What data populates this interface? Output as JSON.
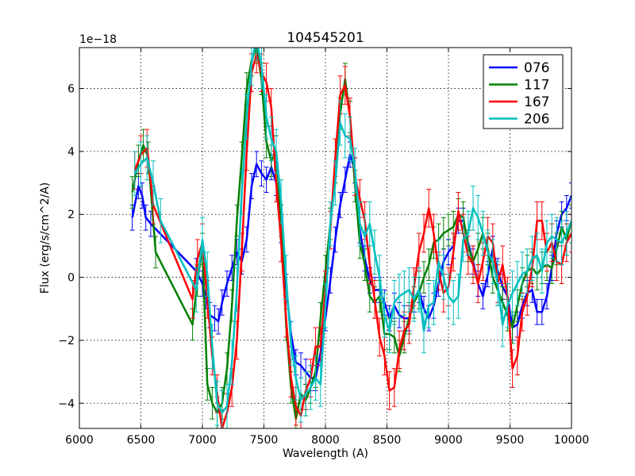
{
  "chart_data": {
    "type": "line",
    "title": "104545201",
    "xlabel": "Wavelength (A)",
    "ylabel": "Flux (erg/s/cm^2/A)",
    "y_offset_label": "1e−18",
    "xlim": [
      6000,
      10000
    ],
    "ylim": [
      -4.8,
      7.3
    ],
    "xticks": [
      6000,
      6500,
      7000,
      7500,
      8000,
      8500,
      9000,
      9500,
      10000
    ],
    "xtick_labels": [
      "6000",
      "6500",
      "7000",
      "7500",
      "8000",
      "8500",
      "9000",
      "9500",
      "10000"
    ],
    "yticks": [
      -4,
      -2,
      0,
      2,
      4,
      6
    ],
    "ytick_labels": [
      "−4",
      "−2",
      "0",
      "2",
      "4",
      "6"
    ],
    "grid": true,
    "legend_position": "top-right",
    "series": [
      {
        "name": "076",
        "color": "#0000ff",
        "x": [
          6430,
          6480,
          6510,
          6540,
          6580,
          6950,
          7000,
          7030,
          7060,
          7100,
          7130,
          7160,
          7200,
          7240,
          7280,
          7320,
          7360,
          7400,
          7440,
          7480,
          7520,
          7560,
          7600,
          7640,
          7680,
          7720,
          7760,
          7800,
          7840,
          7880,
          7920,
          7960,
          8000,
          8040,
          8080,
          8120,
          8160,
          8200,
          8240,
          8280,
          8320,
          8360,
          8400,
          8440,
          8480,
          8520,
          8560,
          8600,
          8640,
          8680,
          8720,
          8760,
          8800,
          8840,
          8880,
          8920,
          8960,
          9000,
          9040,
          9080,
          9120,
          9160,
          9200,
          9240,
          9280,
          9320,
          9360,
          9400,
          9440,
          9480,
          9520,
          9560,
          9600,
          9640,
          9680,
          9720,
          9760,
          9800,
          9840,
          9880,
          9920,
          9960,
          10000
        ],
        "y": [
          1.9,
          2.9,
          2.6,
          1.9,
          1.7,
          0.2,
          -0.2,
          -0.6,
          -1.2,
          -1.3,
          -1.4,
          -0.8,
          -0.2,
          0.3,
          0.8,
          0.5,
          1.2,
          2.9,
          3.6,
          3.3,
          3.1,
          3.5,
          3.0,
          1.5,
          -0.3,
          -1.8,
          -2.7,
          -2.8,
          -3.0,
          -3.2,
          -3.2,
          -2.4,
          -1.3,
          -0.1,
          1.2,
          2.3,
          3.1,
          3.9,
          3.4,
          1.5,
          0.6,
          -0.1,
          -0.4,
          -0.4,
          -0.8,
          -1.3,
          -0.9,
          -1.2,
          -1.3,
          -1.3,
          -0.7,
          -0.4,
          -1.0,
          -1.3,
          -0.9,
          -0.2,
          0.5,
          0.8,
          1.0,
          1.8,
          1.8,
          1.1,
          0.5,
          -0.2,
          -0.6,
          0.1,
          0.9,
          0.2,
          -0.3,
          -0.6,
          -1.6,
          -1.5,
          -0.9,
          -0.5,
          -0.4,
          -1.1,
          -1.1,
          -0.6,
          0.3,
          1.4,
          2.0,
          2.2,
          2.6
        ],
        "err": [
          0.4,
          0.4,
          0.4,
          0.4,
          0.4,
          0.4,
          0.4,
          0.4,
          0.4,
          0.4,
          0.4,
          0.4,
          0.4,
          0.4,
          0.4,
          0.4,
          0.4,
          0.4,
          0.4,
          0.4,
          0.4,
          0.4,
          0.4,
          0.4,
          0.4,
          0.4,
          0.4,
          0.4,
          0.4,
          0.4,
          0.4,
          0.4,
          0.4,
          0.4,
          0.4,
          0.4,
          0.4,
          0.4,
          0.4,
          0.4,
          0.4,
          0.4,
          0.4,
          0.4,
          0.4,
          0.4,
          0.4,
          0.4,
          0.4,
          0.4,
          0.4,
          0.4,
          0.4,
          0.4,
          0.4,
          0.4,
          0.4,
          0.4,
          0.4,
          0.4,
          0.4,
          0.4,
          0.4,
          0.4,
          0.4,
          0.4,
          0.4,
          0.4,
          0.4,
          0.4,
          0.4,
          0.4,
          0.4,
          0.4,
          0.4,
          0.4,
          0.4,
          0.4,
          0.4,
          0.4,
          0.4,
          0.4,
          0.4
        ]
      },
      {
        "name": "117",
        "color": "#008000",
        "x": [
          6430,
          6480,
          6520,
          6560,
          6620,
          6920,
          6960,
          7000,
          7040,
          7080,
          7120,
          7160,
          7200,
          7240,
          7280,
          7320,
          7360,
          7400,
          7440,
          7480,
          7520,
          7560,
          7600,
          7640,
          7680,
          7720,
          7760,
          7800,
          7840,
          7880,
          7920,
          7960,
          8000,
          8040,
          8080,
          8120,
          8160,
          8200,
          8240,
          8280,
          8320,
          8360,
          8400,
          8440,
          8480,
          8520,
          8560,
          8600,
          8640,
          8680,
          8720,
          8760,
          8800,
          8840,
          8880,
          8920,
          8960,
          9000,
          9040,
          9080,
          9120,
          9160,
          9200,
          9240,
          9280,
          9320,
          9360,
          9400,
          9440,
          9480,
          9520,
          9560,
          9600,
          9640,
          9680,
          9720,
          9760,
          9800,
          9840,
          9880,
          9920,
          9960,
          10000
        ],
        "y": [
          2.7,
          3.7,
          4.2,
          3.8,
          0.8,
          -1.5,
          -0.1,
          0.9,
          -3.4,
          -4.0,
          -4.3,
          -4.0,
          -2.9,
          -0.9,
          1.8,
          3.8,
          6.0,
          6.9,
          7.3,
          6.3,
          4.3,
          3.7,
          4.0,
          1.8,
          -1.5,
          -3.5,
          -4.5,
          -3.7,
          -3.9,
          -3.5,
          -3.0,
          -1.3,
          0.2,
          1.7,
          3.5,
          5.2,
          6.3,
          5.1,
          2.9,
          1.1,
          0.4,
          -0.6,
          -0.8,
          -0.6,
          -1.8,
          -1.8,
          -1.9,
          -2.5,
          -1.9,
          -1.3,
          -0.8,
          -0.5,
          0.0,
          0.4,
          1.1,
          1.2,
          1.4,
          1.5,
          1.6,
          2.0,
          1.9,
          1.0,
          0.5,
          0.9,
          1.4,
          0.9,
          0.0,
          -0.4,
          -0.8,
          -1.2,
          -1.6,
          -0.9,
          -0.2,
          0.2,
          0.3,
          0.1,
          0.3,
          0.4,
          0.3,
          0.9,
          1.6,
          1.2,
          1.8
        ],
        "err": [
          0.5,
          0.5,
          0.5,
          0.5,
          0.5,
          0.5,
          0.5,
          0.5,
          0.5,
          0.5,
          0.5,
          0.5,
          0.5,
          0.5,
          0.5,
          0.5,
          0.5,
          0.5,
          0.5,
          0.5,
          0.5,
          0.5,
          0.5,
          0.5,
          0.5,
          0.5,
          0.5,
          0.5,
          0.5,
          0.5,
          0.5,
          0.5,
          0.5,
          0.5,
          0.5,
          0.5,
          0.5,
          0.5,
          0.5,
          0.5,
          0.5,
          0.5,
          0.5,
          0.5,
          0.5,
          0.5,
          0.5,
          0.5,
          0.5,
          0.5,
          0.5,
          0.5,
          0.5,
          0.5,
          0.5,
          0.5,
          0.5,
          0.5,
          0.5,
          0.5,
          0.5,
          0.5,
          0.5,
          0.5,
          0.5,
          0.5,
          0.5,
          0.5,
          0.5,
          0.5,
          0.5,
          0.5,
          0.5,
          0.5,
          0.5,
          0.5,
          0.5,
          0.5,
          0.5,
          0.5,
          0.5,
          0.5,
          0.5
        ]
      },
      {
        "name": "167",
        "color": "#ff0000",
        "x": [
          6450,
          6500,
          6550,
          6600,
          6920,
          6960,
          7000,
          7040,
          7080,
          7120,
          7160,
          7200,
          7240,
          7280,
          7320,
          7360,
          7400,
          7440,
          7480,
          7520,
          7560,
          7600,
          7640,
          7680,
          7720,
          7760,
          7800,
          7840,
          7880,
          7920,
          7960,
          8000,
          8040,
          8080,
          8120,
          8160,
          8200,
          8240,
          8280,
          8320,
          8360,
          8400,
          8440,
          8480,
          8520,
          8560,
          8600,
          8640,
          8680,
          8720,
          8760,
          8800,
          8840,
          8880,
          8920,
          8960,
          9000,
          9040,
          9080,
          9120,
          9160,
          9200,
          9240,
          9280,
          9320,
          9360,
          9400,
          9440,
          9480,
          9520,
          9560,
          9600,
          9640,
          9680,
          9720,
          9760,
          9800,
          9840,
          9880,
          9920,
          9960,
          10000
        ],
        "y": [
          3.4,
          3.9,
          4.1,
          2.3,
          -0.7,
          0.6,
          1.1,
          -0.7,
          -2.5,
          -3.7,
          -4.8,
          -4.3,
          -3.5,
          -2.0,
          0.8,
          4.0,
          6.5,
          7.1,
          6.5,
          6.2,
          5.4,
          3.0,
          1.1,
          -1.3,
          -3.2,
          -4.1,
          -4.4,
          -3.6,
          -3.2,
          -2.2,
          -2.2,
          -0.4,
          1.5,
          3.8,
          5.8,
          6.1,
          5.1,
          3.2,
          2.5,
          1.8,
          0.4,
          -0.7,
          -1.9,
          -2.5,
          -3.6,
          -3.5,
          -2.3,
          -1.7,
          -1.5,
          -0.3,
          0.8,
          1.4,
          2.2,
          1.4,
          0.2,
          -0.5,
          -0.3,
          0.8,
          2.1,
          1.4,
          0.7,
          0.4,
          -0.2,
          0.5,
          1.3,
          1.1,
          -0.2,
          0.4,
          -0.6,
          -2.9,
          -2.5,
          -1.1,
          -0.6,
          0.3,
          1.8,
          1.8,
          0.8,
          1.1,
          0.5,
          0.4,
          1.1,
          1.4
        ],
        "err": [
          0.6,
          0.6,
          0.6,
          0.6,
          0.6,
          0.6,
          0.6,
          0.6,
          0.6,
          0.6,
          0.6,
          0.6,
          0.6,
          0.6,
          0.6,
          0.6,
          0.6,
          0.6,
          0.6,
          0.6,
          0.6,
          0.6,
          0.6,
          0.6,
          0.6,
          0.6,
          0.6,
          0.6,
          0.6,
          0.6,
          0.6,
          0.6,
          0.6,
          0.6,
          0.6,
          0.6,
          0.6,
          0.6,
          0.6,
          0.6,
          0.6,
          0.6,
          0.6,
          0.6,
          0.6,
          0.6,
          0.6,
          0.6,
          0.6,
          0.6,
          0.6,
          0.6,
          0.6,
          0.6,
          0.6,
          0.6,
          0.6,
          0.6,
          0.6,
          0.6,
          0.6,
          0.6,
          0.6,
          0.6,
          0.6,
          0.6,
          0.6,
          0.6,
          0.6,
          0.6,
          0.6,
          0.6,
          0.6,
          0.6,
          0.6,
          0.6,
          0.6,
          0.6,
          0.6,
          0.6,
          0.6,
          0.6
        ]
      },
      {
        "name": "206",
        "color": "#00bfbf",
        "x": [
          6450,
          6500,
          6550,
          6600,
          6660,
          6950,
          7000,
          7040,
          7080,
          7120,
          7160,
          7200,
          7240,
          7280,
          7320,
          7360,
          7400,
          7440,
          7480,
          7520,
          7560,
          7600,
          7640,
          7680,
          7720,
          7760,
          7800,
          7840,
          7880,
          7920,
          7960,
          8000,
          8040,
          8080,
          8120,
          8160,
          8200,
          8240,
          8280,
          8320,
          8360,
          8400,
          8440,
          8480,
          8520,
          8560,
          8600,
          8640,
          8680,
          8720,
          8760,
          8800,
          8840,
          8880,
          8920,
          8960,
          9000,
          9040,
          9080,
          9120,
          9160,
          9200,
          9240,
          9280,
          9320,
          9360,
          9400,
          9440,
          9480,
          9520,
          9560,
          9600,
          9640,
          9680,
          9720,
          9760,
          9800,
          9840,
          9880,
          9920,
          9960,
          10000
        ],
        "y": [
          3.3,
          3.6,
          3.8,
          3.0,
          1.8,
          -0.4,
          1.2,
          0.1,
          -2.2,
          -4.0,
          -4.3,
          -4.1,
          -2.7,
          -0.4,
          2.7,
          5.1,
          6.8,
          7.6,
          6.7,
          5.1,
          4.4,
          4.0,
          2.4,
          0.0,
          -2.1,
          -3.2,
          -3.9,
          -3.7,
          -3.5,
          -3.2,
          -3.4,
          -0.9,
          1.7,
          3.0,
          4.9,
          4.5,
          4.4,
          3.4,
          1.7,
          1.3,
          1.7,
          0.8,
          0.0,
          -1.2,
          -1.7,
          -0.8,
          -0.6,
          -0.5,
          -0.4,
          -0.7,
          -0.4,
          -1.7,
          -0.9,
          -0.8,
          0.5,
          0.0,
          -0.6,
          -0.8,
          -0.6,
          1.2,
          1.4,
          2.2,
          1.9,
          1.4,
          0.8,
          0.5,
          -0.2,
          -1.5,
          -0.9,
          -0.5,
          -0.2,
          0.1,
          0.2,
          0.6,
          0.7,
          0.2,
          1.1,
          1.3,
          1.2,
          1.1,
          1.4,
          1.8
        ],
        "err": [
          0.7,
          0.7,
          0.7,
          0.7,
          0.7,
          0.7,
          0.7,
          0.7,
          0.7,
          0.7,
          0.7,
          0.7,
          0.7,
          0.7,
          0.7,
          0.7,
          0.7,
          0.7,
          0.7,
          0.7,
          0.7,
          0.7,
          0.7,
          0.7,
          0.7,
          0.7,
          0.7,
          0.7,
          0.7,
          0.7,
          0.7,
          0.7,
          0.7,
          0.7,
          0.7,
          0.7,
          0.7,
          0.7,
          0.7,
          0.7,
          0.7,
          0.7,
          0.7,
          0.7,
          0.7,
          0.7,
          0.7,
          0.7,
          0.7,
          0.7,
          0.7,
          0.7,
          0.7,
          0.7,
          0.7,
          0.7,
          0.7,
          0.7,
          0.7,
          0.7,
          0.7,
          0.7,
          0.7,
          0.7,
          0.7,
          0.7,
          0.7,
          0.7,
          0.7,
          0.7,
          0.7,
          0.7,
          0.7,
          0.7,
          0.7,
          0.7,
          0.7,
          0.7,
          0.7,
          0.7,
          0.7,
          0.7
        ]
      }
    ]
  }
}
